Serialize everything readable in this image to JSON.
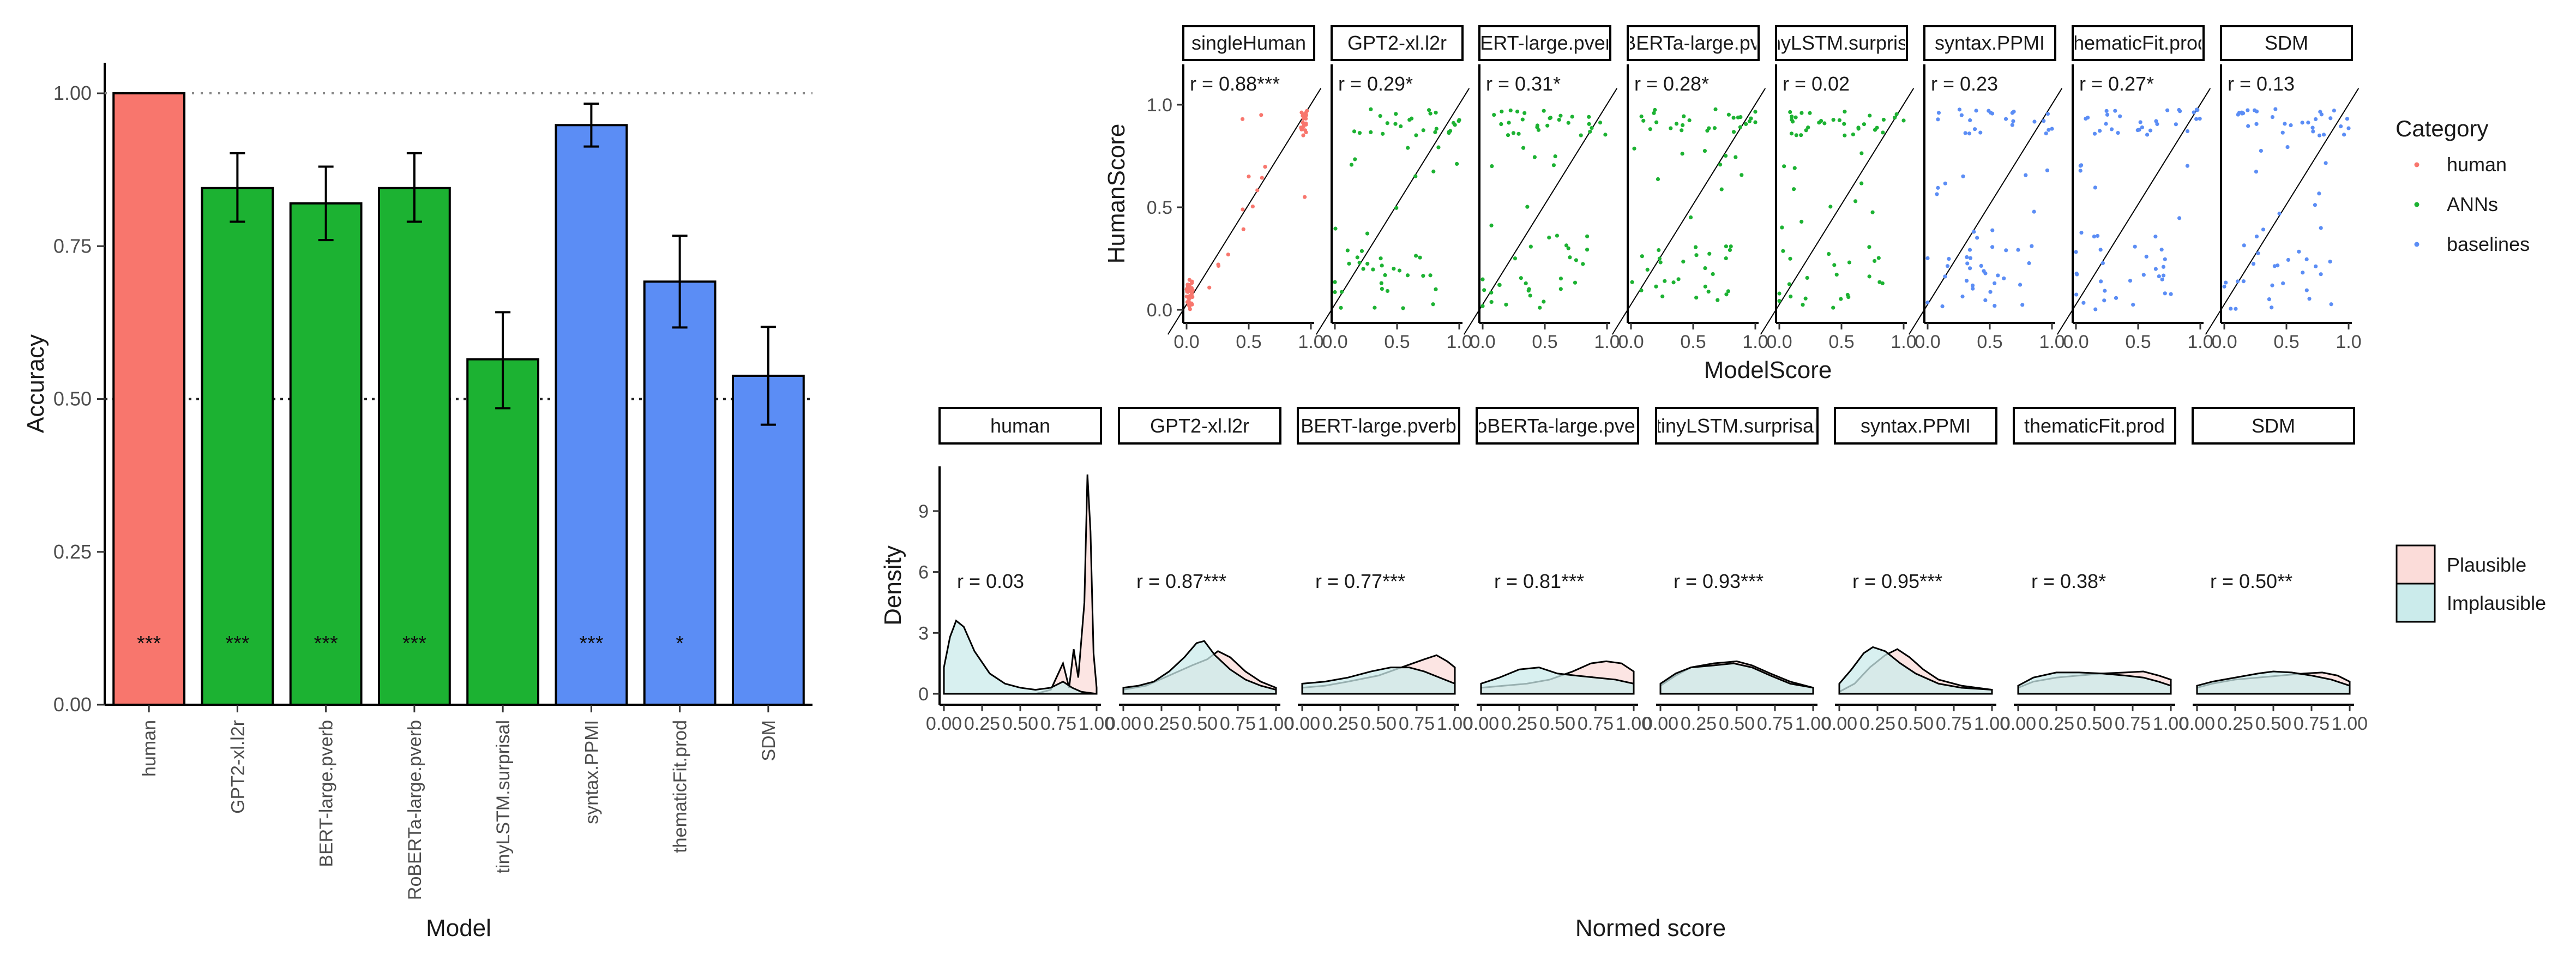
{
  "colors": {
    "human": "#F8766D",
    "ANNs": "#1CB232",
    "baselines": "#5B8DF5",
    "plausible_fill": "#FBDCD9",
    "implausible_fill": "#CBEBEB"
  },
  "chart_data": [
    {
      "type": "bar",
      "xlabel": "Model",
      "ylabel": "Accuracy",
      "ylim": [
        0,
        1.05
      ],
      "yticks": [
        "0.00",
        "0.25",
        "0.50",
        "0.75",
        "1.00"
      ],
      "reference_lines": [
        1.0,
        0.5
      ],
      "categories": [
        "human",
        "GPT2-xl.l2r",
        "BERT-large.pverb",
        "RoBERTa-large.pverb",
        "tinyLSTM.surprisal",
        "syntax.PPMI",
        "thematicFit.prod",
        "SDM"
      ],
      "groups": [
        "human",
        "ANNs",
        "ANNs",
        "ANNs",
        "ANNs",
        "baselines",
        "baselines",
        "baselines"
      ],
      "values": [
        1.0,
        0.845,
        0.82,
        0.845,
        0.565,
        0.948,
        0.692,
        0.538
      ],
      "err_low": [
        null,
        0.79,
        0.76,
        0.79,
        0.485,
        0.913,
        0.617,
        0.458
      ],
      "err_high": [
        null,
        0.902,
        0.88,
        0.902,
        0.642,
        0.983,
        0.767,
        0.618
      ],
      "significance": [
        "***",
        "***",
        "***",
        "***",
        "",
        "***",
        "*",
        ""
      ]
    },
    {
      "type": "scatter",
      "xlabel": "ModelScore",
      "ylabel": "HumanScore",
      "xticks": [
        "0.0",
        "0.5",
        "1.0"
      ],
      "yticks": [
        "0.0",
        "0.5",
        "1.0"
      ],
      "panels": [
        {
          "label": "singleHuman",
          "group": "human",
          "r": "r = 0.88***"
        },
        {
          "label": "GPT2-xl.l2r",
          "group": "ANNs",
          "r": "r = 0.29*"
        },
        {
          "label": "BERT-large.pverb",
          "group": "ANNs",
          "r": "r = 0.31*"
        },
        {
          "label": "RoBERTa-large.pverb",
          "group": "ANNs",
          "r": "r = 0.28*"
        },
        {
          "label": "tinyLSTM.surprisal",
          "group": "ANNs",
          "r": "r = 0.02"
        },
        {
          "label": "syntax.PPMI",
          "group": "baselines",
          "r": "r = 0.23"
        },
        {
          "label": "thematicFit.prod",
          "group": "baselines",
          "r": "r = 0.27*"
        },
        {
          "label": "SDM",
          "group": "baselines",
          "r": "r = 0.13"
        }
      ],
      "legend": {
        "title": "Category",
        "items": [
          "human",
          "ANNs",
          "baselines"
        ],
        "position": "right"
      }
    },
    {
      "type": "area",
      "xlabel": "Normed score",
      "ylabel": "Density",
      "xticks": [
        "0.00",
        "0.25",
        "0.50",
        "0.75",
        "1.00"
      ],
      "yticks": [
        "0",
        "3",
        "6",
        "9"
      ],
      "ylim": [
        0,
        11.2
      ],
      "panels": [
        {
          "label": "human",
          "r": "r = 0.03",
          "plausible": [
            [
              0,
              0
            ],
            [
              0.6,
              0
            ],
            [
              0.7,
              0.2
            ],
            [
              0.78,
              1.5
            ],
            [
              0.82,
              0.3
            ],
            [
              0.85,
              2.2
            ],
            [
              0.88,
              0.8
            ],
            [
              0.92,
              4.5
            ],
            [
              0.94,
              10.8
            ],
            [
              0.96,
              8
            ],
            [
              0.98,
              2
            ],
            [
              1,
              0.3
            ]
          ],
          "implausible": [
            [
              0,
              1.3
            ],
            [
              0.04,
              2.8
            ],
            [
              0.08,
              3.6
            ],
            [
              0.13,
              3.3
            ],
            [
              0.2,
              2.1
            ],
            [
              0.3,
              1
            ],
            [
              0.4,
              0.5
            ],
            [
              0.5,
              0.3
            ],
            [
              0.6,
              0.2
            ],
            [
              0.7,
              0.3
            ],
            [
              0.78,
              0.6
            ],
            [
              0.84,
              0.3
            ],
            [
              0.9,
              0.1
            ],
            [
              1,
              0
            ]
          ]
        },
        {
          "label": "GPT2-xl.l2r",
          "r": "r = 0.87***",
          "plausible": [
            [
              0,
              0.2
            ],
            [
              0.15,
              0.4
            ],
            [
              0.3,
              0.9
            ],
            [
              0.45,
              1.4
            ],
            [
              0.55,
              1.7
            ],
            [
              0.62,
              2.1
            ],
            [
              0.7,
              1.8
            ],
            [
              0.8,
              1.1
            ],
            [
              0.9,
              0.6
            ],
            [
              1,
              0.3
            ]
          ],
          "implausible": [
            [
              0,
              0.3
            ],
            [
              0.1,
              0.4
            ],
            [
              0.2,
              0.6
            ],
            [
              0.3,
              1.1
            ],
            [
              0.4,
              1.8
            ],
            [
              0.48,
              2.5
            ],
            [
              0.53,
              2.6
            ],
            [
              0.6,
              1.9
            ],
            [
              0.7,
              1.2
            ],
            [
              0.8,
              0.7
            ],
            [
              0.9,
              0.4
            ],
            [
              1,
              0.2
            ]
          ]
        },
        {
          "label": "BERT-large.pverb",
          "r": "r = 0.77***",
          "plausible": [
            [
              0,
              0.3
            ],
            [
              0.15,
              0.4
            ],
            [
              0.3,
              0.6
            ],
            [
              0.5,
              0.9
            ],
            [
              0.65,
              1.3
            ],
            [
              0.8,
              1.7
            ],
            [
              0.88,
              1.9
            ],
            [
              0.95,
              1.6
            ],
            [
              1,
              1.3
            ]
          ],
          "implausible": [
            [
              0,
              0.5
            ],
            [
              0.15,
              0.6
            ],
            [
              0.3,
              0.8
            ],
            [
              0.45,
              1.1
            ],
            [
              0.58,
              1.3
            ],
            [
              0.7,
              1.3
            ],
            [
              0.8,
              1.1
            ],
            [
              0.9,
              0.8
            ],
            [
              1,
              0.5
            ]
          ]
        },
        {
          "label": "RoBERTa-large.pverb",
          "r": "r = 0.81***",
          "plausible": [
            [
              0,
              0.3
            ],
            [
              0.15,
              0.4
            ],
            [
              0.3,
              0.5
            ],
            [
              0.45,
              0.7
            ],
            [
              0.6,
              1.1
            ],
            [
              0.72,
              1.5
            ],
            [
              0.82,
              1.6
            ],
            [
              0.92,
              1.5
            ],
            [
              1,
              1.1
            ]
          ],
          "implausible": [
            [
              0,
              0.5
            ],
            [
              0.12,
              0.8
            ],
            [
              0.25,
              1.2
            ],
            [
              0.38,
              1.3
            ],
            [
              0.5,
              1.0
            ],
            [
              0.62,
              0.9
            ],
            [
              0.75,
              0.8
            ],
            [
              0.88,
              0.7
            ],
            [
              1,
              0.5
            ]
          ]
        },
        {
          "label": "tinyLSTM.surprisal",
          "r": "r = 0.93***",
          "plausible": [
            [
              0,
              0.4
            ],
            [
              0.1,
              0.9
            ],
            [
              0.2,
              1.3
            ],
            [
              0.35,
              1.5
            ],
            [
              0.5,
              1.6
            ],
            [
              0.6,
              1.4
            ],
            [
              0.72,
              1.0
            ],
            [
              0.85,
              0.6
            ],
            [
              1,
              0.3
            ]
          ],
          "implausible": [
            [
              0,
              0.5
            ],
            [
              0.1,
              1.0
            ],
            [
              0.2,
              1.3
            ],
            [
              0.35,
              1.4
            ],
            [
              0.48,
              1.5
            ],
            [
              0.6,
              1.3
            ],
            [
              0.72,
              0.9
            ],
            [
              0.85,
              0.5
            ],
            [
              1,
              0.3
            ]
          ]
        },
        {
          "label": "syntax.PPMI",
          "r": "r = 0.95***",
          "plausible": [
            [
              0,
              0.1
            ],
            [
              0.1,
              0.5
            ],
            [
              0.2,
              1.3
            ],
            [
              0.3,
              1.9
            ],
            [
              0.38,
              2.2
            ],
            [
              0.46,
              1.8
            ],
            [
              0.55,
              1.2
            ],
            [
              0.65,
              0.7
            ],
            [
              0.8,
              0.4
            ],
            [
              1,
              0.2
            ]
          ],
          "implausible": [
            [
              0,
              0.5
            ],
            [
              0.08,
              1.2
            ],
            [
              0.16,
              2.0
            ],
            [
              0.22,
              2.3
            ],
            [
              0.3,
              2.1
            ],
            [
              0.4,
              1.5
            ],
            [
              0.5,
              1.0
            ],
            [
              0.65,
              0.5
            ],
            [
              0.8,
              0.3
            ],
            [
              1,
              0.2
            ]
          ]
        },
        {
          "label": "thematicFit.prod",
          "r": "r = 0.38*",
          "plausible": [
            [
              0,
              0.3
            ],
            [
              0.1,
              0.6
            ],
            [
              0.25,
              0.8
            ],
            [
              0.4,
              0.9
            ],
            [
              0.55,
              1.0
            ],
            [
              0.7,
              1.05
            ],
            [
              0.82,
              1.1
            ],
            [
              0.92,
              0.9
            ],
            [
              1,
              0.7
            ]
          ],
          "implausible": [
            [
              0,
              0.4
            ],
            [
              0.1,
              0.8
            ],
            [
              0.25,
              1.05
            ],
            [
              0.4,
              1.05
            ],
            [
              0.55,
              1.0
            ],
            [
              0.7,
              0.9
            ],
            [
              0.82,
              0.8
            ],
            [
              0.92,
              0.6
            ],
            [
              1,
              0.4
            ]
          ]
        },
        {
          "label": "SDM",
          "r": "r = 0.50**",
          "plausible": [
            [
              0,
              0.3
            ],
            [
              0.1,
              0.5
            ],
            [
              0.25,
              0.7
            ],
            [
              0.4,
              0.8
            ],
            [
              0.55,
              0.9
            ],
            [
              0.7,
              1.0
            ],
            [
              0.82,
              1.05
            ],
            [
              0.92,
              0.9
            ],
            [
              1,
              0.6
            ]
          ],
          "implausible": [
            [
              0,
              0.4
            ],
            [
              0.1,
              0.6
            ],
            [
              0.25,
              0.8
            ],
            [
              0.4,
              1.0
            ],
            [
              0.5,
              1.1
            ],
            [
              0.62,
              1.05
            ],
            [
              0.75,
              0.9
            ],
            [
              0.88,
              0.7
            ],
            [
              1,
              0.4
            ]
          ]
        }
      ],
      "legend": {
        "items": [
          "Plausible",
          "Implausible"
        ],
        "position": "right"
      }
    }
  ]
}
